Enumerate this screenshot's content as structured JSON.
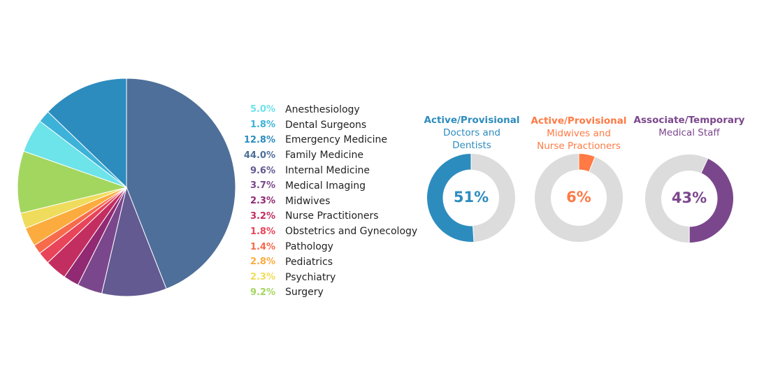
{
  "chart_data": [
    {
      "type": "pie",
      "start": "top",
      "direction": "clockwise",
      "slices": [
        {
          "label": "Family Medicine",
          "value": 44.0,
          "pct": "44.0%",
          "color": "#4e6f99"
        },
        {
          "label": "Internal Medicine",
          "value": 9.6,
          "pct": "9.6%",
          "color": "#625a91"
        },
        {
          "label": "Medical Imaging",
          "value": 3.7,
          "pct": "3.7%",
          "color": "#7b478c"
        },
        {
          "label": "Midwives",
          "value": 2.3,
          "pct": "2.3%",
          "color": "#912a72"
        },
        {
          "label": "Nurse Practitioners",
          "value": 3.2,
          "pct": "3.2%",
          "color": "#c32e61"
        },
        {
          "label": "Obstetrics and Gynecology",
          "value": 1.8,
          "pct": "1.8%",
          "color": "#e8445a"
        },
        {
          "label": "Pathology",
          "value": 1.4,
          "pct": "1.4%",
          "color": "#f76b4a"
        },
        {
          "label": "Pediatrics",
          "value": 2.8,
          "pct": "2.8%",
          "color": "#fcac3e"
        },
        {
          "label": "Psychiatry",
          "value": 2.3,
          "pct": "2.3%",
          "color": "#f0dc5c"
        },
        {
          "label": "Surgery",
          "value": 9.2,
          "pct": "9.2%",
          "color": "#a3d65f"
        },
        {
          "label": "Anesthesiology",
          "value": 5.0,
          "pct": "5.0%",
          "color": "#6de3ea"
        },
        {
          "label": "Dental Surgeons",
          "value": 1.8,
          "pct": "1.8%",
          "color": "#3db2d8"
        },
        {
          "label": "Emergency Medicine",
          "value": 12.8,
          "pct": "12.8%",
          "color": "#2d8cbe"
        }
      ],
      "legend_order": [
        "Anesthesiology",
        "Dental Surgeons",
        "Emergency Medicine",
        "Family Medicine",
        "Internal Medicine",
        "Medical Imaging",
        "Midwives",
        "Nurse Practitioners",
        "Obstetrics and Gynecology",
        "Pathology",
        "Pediatrics",
        "Psychiatry",
        "Surgery"
      ],
      "legend_placement": "right"
    },
    {
      "type": "pie",
      "title": "Active/Provisional",
      "subtitle": [
        "Doctors and",
        "Dentists"
      ],
      "value": 51,
      "label": "51%",
      "color": "#2d8cbe",
      "track": "#dcdcdc",
      "direction": "counterclockwise",
      "start_deg": 0
    },
    {
      "type": "pie",
      "title": "Active/Provisional",
      "subtitle": [
        "Midwives and",
        "Nurse Practioners"
      ],
      "value": 6,
      "label": "6%",
      "color": "#ff7a45",
      "track": "#dcdcdc",
      "direction": "clockwise",
      "start_deg": 0
    },
    {
      "type": "pie",
      "title": "Associate/Temporary",
      "subtitle": [
        "Medical Staff"
      ],
      "value": 43,
      "label": "43%",
      "color": "#7b478c",
      "track": "#dcdcdc",
      "direction": "clockwise",
      "start_deg": 25
    }
  ]
}
